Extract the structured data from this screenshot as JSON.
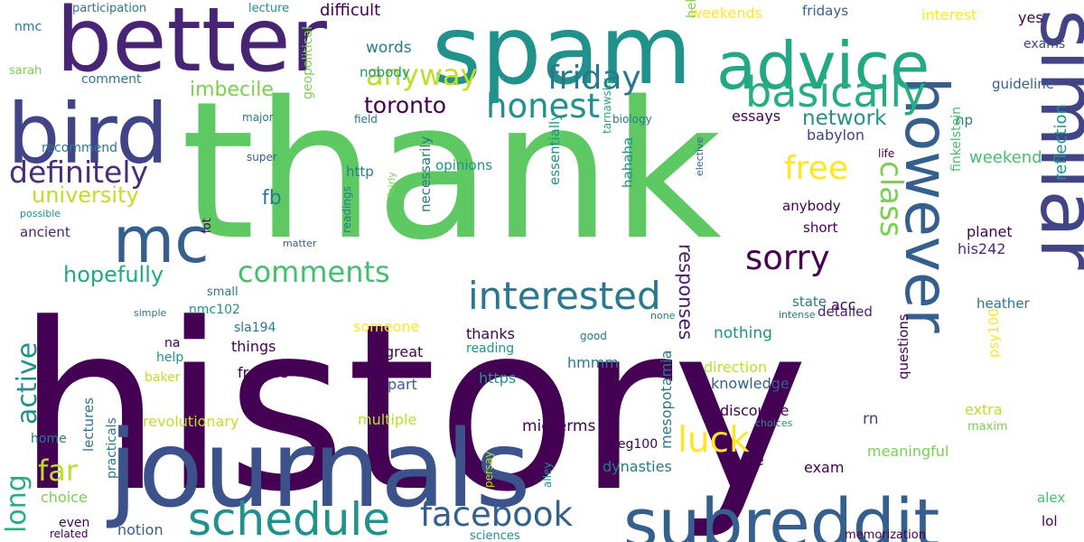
{
  "colors": {
    "background": "#ffffff",
    "palette": [
      "#440154",
      "#482475",
      "#414487",
      "#355f8d",
      "#2a788e",
      "#21918c",
      "#22a884",
      "#44bf70",
      "#7ad151",
      "#bddf26",
      "#fde725"
    ]
  },
  "words": [
    {
      "text": "history",
      "color": "#440154",
      "rotate": 0
    },
    {
      "text": "thank",
      "color": "#5ec962",
      "rotate": 0
    },
    {
      "text": "journals",
      "color": "#3b528b",
      "rotate": 0
    },
    {
      "text": "spam",
      "color": "#21918c",
      "rotate": 0
    },
    {
      "text": "better",
      "color": "#482475",
      "rotate": 0
    },
    {
      "text": "similar",
      "color": "#414487",
      "rotate": 90
    },
    {
      "text": "advice",
      "color": "#22a884",
      "rotate": 0
    },
    {
      "text": "bird",
      "color": "#414487",
      "rotate": 0
    },
    {
      "text": "however",
      "color": "#355f8d",
      "rotate": 90
    },
    {
      "text": "subreddit",
      "color": "#355f8d",
      "rotate": 0
    },
    {
      "text": "mc",
      "color": "#355f8d",
      "rotate": 0
    },
    {
      "text": "basically",
      "color": "#27ad81",
      "rotate": 0
    },
    {
      "text": "interested",
      "color": "#2a788e",
      "rotate": 0
    },
    {
      "text": "schedule",
      "color": "#21918c",
      "rotate": 0
    },
    {
      "text": "definitely",
      "color": "#472d7b",
      "rotate": 0
    },
    {
      "text": "facebook",
      "color": "#355f8d",
      "rotate": 0
    },
    {
      "text": "honest",
      "color": "#21918c",
      "rotate": 0
    },
    {
      "text": "comments",
      "color": "#44bf70",
      "rotate": 0
    },
    {
      "text": "friday",
      "color": "#2a788e",
      "rotate": 0
    },
    {
      "text": "anyway",
      "color": "#bddf26",
      "rotate": 0
    },
    {
      "text": "sorry",
      "color": "#440154",
      "rotate": 0
    },
    {
      "text": "luck",
      "color": "#fde725",
      "rotate": 0
    },
    {
      "text": "free",
      "color": "#fde725",
      "rotate": 0
    },
    {
      "text": "class",
      "color": "#7ad151",
      "rotate": 90
    },
    {
      "text": "active",
      "color": "#21918c",
      "rotate": 270
    },
    {
      "text": "far",
      "color": "#bddf26",
      "rotate": 0
    },
    {
      "text": "long",
      "color": "#27ad81",
      "rotate": 270
    },
    {
      "text": "hopefully",
      "color": "#22a884",
      "rotate": 0
    },
    {
      "text": "university",
      "color": "#bddf26",
      "rotate": 0
    },
    {
      "text": "toronto",
      "color": "#440154",
      "rotate": 0
    },
    {
      "text": "imbecile",
      "color": "#7ad151",
      "rotate": 0
    },
    {
      "text": "network",
      "color": "#21918c",
      "rotate": 0
    },
    {
      "text": "responses",
      "color": "#481f70",
      "rotate": 90
    },
    {
      "text": "fb",
      "color": "#2a788e",
      "rotate": 0
    },
    {
      "text": "words",
      "color": "#2a788e",
      "rotate": 0
    },
    {
      "text": "difficult",
      "color": "#440154",
      "rotate": 0
    },
    {
      "text": "nobody",
      "color": "#21918c",
      "rotate": 0
    },
    {
      "text": "weekends",
      "color": "#fde725",
      "rotate": 0
    },
    {
      "text": "fridays",
      "color": "#355f8d",
      "rotate": 0
    },
    {
      "text": "interest",
      "color": "#fde725",
      "rotate": 0
    },
    {
      "text": "yes",
      "color": "#440154",
      "rotate": 0
    },
    {
      "text": "exams",
      "color": "#414487",
      "rotate": 0
    },
    {
      "text": "guideline",
      "color": "#355f8d",
      "rotate": 0
    },
    {
      "text": "np",
      "color": "#2a788e",
      "rotate": 0
    },
    {
      "text": "weekend",
      "color": "#44bf70",
      "rotate": 0
    },
    {
      "text": "essays",
      "color": "#440154",
      "rotate": 0
    },
    {
      "text": "babylon",
      "color": "#414487",
      "rotate": 0
    },
    {
      "text": "reflection",
      "color": "#21918c",
      "rotate": 270
    },
    {
      "text": "finkelstein",
      "color": "#44bf70",
      "rotate": 270
    },
    {
      "text": "planet",
      "color": "#440154",
      "rotate": 0
    },
    {
      "text": "his242",
      "color": "#472d7b",
      "rotate": 0
    },
    {
      "text": "heather",
      "color": "#2a788e",
      "rotate": 0
    },
    {
      "text": "participation",
      "color": "#2a788e",
      "rotate": 0
    },
    {
      "text": "lecture",
      "color": "#21918c",
      "rotate": 0
    },
    {
      "text": "nmc",
      "color": "#2a788e",
      "rotate": 0
    },
    {
      "text": "sarah",
      "color": "#7ad151",
      "rotate": 0
    },
    {
      "text": "comment",
      "color": "#2a788e",
      "rotate": 0
    },
    {
      "text": "recommend",
      "color": "#2a788e",
      "rotate": 0
    },
    {
      "text": "major",
      "color": "#2a788e",
      "rotate": 0
    },
    {
      "text": "super",
      "color": "#355f8d",
      "rotate": 0
    },
    {
      "text": "possible",
      "color": "#21918c",
      "rotate": 0
    },
    {
      "text": "ancient",
      "color": "#482475",
      "rotate": 0
    },
    {
      "text": "field",
      "color": "#2a788e",
      "rotate": 0
    },
    {
      "text": "biology",
      "color": "#2a788e",
      "rotate": 0
    },
    {
      "text": "helpful",
      "color": "#7ad151",
      "rotate": 270
    },
    {
      "text": "life",
      "color": "#440154",
      "rotate": 0
    },
    {
      "text": "elective",
      "color": "#355f8d",
      "rotate": 270
    },
    {
      "text": "http",
      "color": "#2a788e",
      "rotate": 0
    },
    {
      "text": "opinions",
      "color": "#21918c",
      "rotate": 0
    },
    {
      "text": "geopolitical",
      "color": "#7ad151",
      "rotate": 270
    },
    {
      "text": "necessarily",
      "color": "#2a788e",
      "rotate": 270
    },
    {
      "text": "essentially",
      "color": "#21918c",
      "rotate": 270
    },
    {
      "text": "tarnawsky",
      "color": "#22a884",
      "rotate": 270
    },
    {
      "text": "hahaha",
      "color": "#21918c",
      "rotate": 270
    },
    {
      "text": "anybody",
      "color": "#440154",
      "rotate": 0
    },
    {
      "text": "short",
      "color": "#440154",
      "rotate": 0
    },
    {
      "text": "state",
      "color": "#2a788e",
      "rotate": 0
    },
    {
      "text": "detailed",
      "color": "#482475",
      "rotate": 0
    },
    {
      "text": "intense",
      "color": "#2a788e",
      "rotate": 0
    },
    {
      "text": "readings",
      "color": "#2a788e",
      "rotate": 270
    },
    {
      "text": "fairly",
      "color": "#7ad151",
      "rotate": 270
    },
    {
      "text": "lot",
      "color": "#440154",
      "rotate": 270
    },
    {
      "text": "matter",
      "color": "#355f8d",
      "rotate": 0
    },
    {
      "text": "simple",
      "color": "#2a788e",
      "rotate": 0
    },
    {
      "text": "small",
      "color": "#2a788e",
      "rotate": 0
    },
    {
      "text": "nmc102",
      "color": "#21918c",
      "rotate": 0
    },
    {
      "text": "na",
      "color": "#440154",
      "rotate": 0
    },
    {
      "text": "sla194",
      "color": "#2a788e",
      "rotate": 0
    },
    {
      "text": "things",
      "color": "#440154",
      "rotate": 0
    },
    {
      "text": "help",
      "color": "#21918c",
      "rotate": 0
    },
    {
      "text": "freebie",
      "color": "#440154",
      "rotate": 0
    },
    {
      "text": "someone",
      "color": "#fde725",
      "rotate": 0
    },
    {
      "text": "great",
      "color": "#440154",
      "rotate": 0
    },
    {
      "text": "part",
      "color": "#355f8d",
      "rotate": 0
    },
    {
      "text": "https",
      "color": "#21918c",
      "rotate": 0
    },
    {
      "text": "reading",
      "color": "#21918c",
      "rotate": 0
    },
    {
      "text": "thanks",
      "color": "#440154",
      "rotate": 0
    },
    {
      "text": "hmmm",
      "color": "#2a788e",
      "rotate": 0
    },
    {
      "text": "good",
      "color": "#2a788e",
      "rotate": 0
    },
    {
      "text": "none",
      "color": "#2a788e",
      "rotate": 0
    },
    {
      "text": "nothing",
      "color": "#21918c",
      "rotate": 0
    },
    {
      "text": "acc",
      "color": "#440154",
      "rotate": 0
    },
    {
      "text": "direction",
      "color": "#bddf26",
      "rotate": 0
    },
    {
      "text": "knowledge",
      "color": "#355f8d",
      "rotate": 0
    },
    {
      "text": "psy100",
      "color": "#fde725",
      "rotate": 270
    },
    {
      "text": "questions",
      "color": "#440154",
      "rotate": 270
    },
    {
      "text": "mesopotamia",
      "color": "#2a788e",
      "rotate": 270
    },
    {
      "text": "discourse",
      "color": "#440154",
      "rotate": 0
    },
    {
      "text": "rn",
      "color": "#414487",
      "rotate": 0
    },
    {
      "text": "extra",
      "color": "#bddf26",
      "rotate": 0
    },
    {
      "text": "maxim",
      "color": "#7ad151",
      "rotate": 0
    },
    {
      "text": "choices",
      "color": "#21918c",
      "rotate": 0
    },
    {
      "text": "meaningful",
      "color": "#7ad151",
      "rotate": 0
    },
    {
      "text": "type",
      "color": "#440154",
      "rotate": 0
    },
    {
      "text": "exam",
      "color": "#440154",
      "rotate": 0
    },
    {
      "text": "jeg100",
      "color": "#440154",
      "rotate": 0
    },
    {
      "text": "dynasties",
      "color": "#2a788e",
      "rotate": 0
    },
    {
      "text": "midterms",
      "color": "#440154",
      "rotate": 0
    },
    {
      "text": "multiple",
      "color": "#bddf26",
      "rotate": 0
    },
    {
      "text": "revolutionary",
      "color": "#bddf26",
      "rotate": 0
    },
    {
      "text": "baker",
      "color": "#bddf26",
      "rotate": 0
    },
    {
      "text": "practicals",
      "color": "#2a788e",
      "rotate": 270
    },
    {
      "text": "lectures",
      "color": "#2a788e",
      "rotate": 270
    },
    {
      "text": "home",
      "color": "#2a788e",
      "rotate": 0
    },
    {
      "text": "choice",
      "color": "#7ad151",
      "rotate": 0
    },
    {
      "text": "even",
      "color": "#440154",
      "rotate": 0
    },
    {
      "text": "related",
      "color": "#440154",
      "rotate": 0
    },
    {
      "text": "notion",
      "color": "#355f8d",
      "rotate": 0
    },
    {
      "text": "sciences",
      "color": "#21918c",
      "rotate": 0
    },
    {
      "text": "persay",
      "color": "#bddf26",
      "rotate": 270
    },
    {
      "text": "alley",
      "color": "#21918c",
      "rotate": 270
    },
    {
      "text": "alex",
      "color": "#44bf70",
      "rotate": 0
    },
    {
      "text": "lol",
      "color": "#440154",
      "rotate": 0
    },
    {
      "text": "memorization",
      "color": "#440154",
      "rotate": 0
    }
  ]
}
